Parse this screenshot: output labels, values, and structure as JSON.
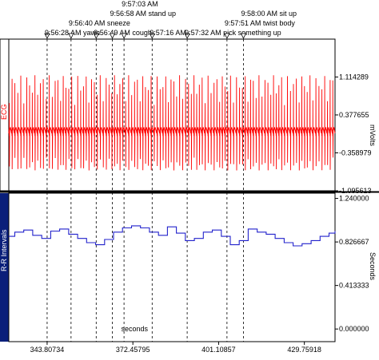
{
  "window": {
    "left_panel_color": "#0a1f7a",
    "ecg_color": "#ff0000",
    "rr_color": "#2222cc"
  },
  "events": [
    {
      "time": 343.80734,
      "label": "9:56:28 AM yawn"
    },
    {
      "time": 351.8,
      "label": "9:56:40 AM sneeze"
    },
    {
      "time": 360.2,
      "label": "9:56:49 AM cough"
    },
    {
      "time": 365.6,
      "label": "9:56:58 AM stand up"
    },
    {
      "time": 369.5,
      "label": "9:57:03 AM"
    },
    {
      "time": 378.9,
      "label": "9:57:16 AM"
    },
    {
      "time": 390.6,
      "label": "9:57:32 AM pick something up"
    },
    {
      "time": 403.9,
      "label": "9:57:51 AM twist body"
    },
    {
      "time": 409.4,
      "label": "9:58:00 AM sit up"
    }
  ],
  "chart_data": [
    {
      "type": "line",
      "channel": "ECG",
      "ylabel": "mVolts",
      "yticks": [
        "1.114289",
        "0.377655",
        "-0.358979",
        "-1.095613"
      ],
      "ylim": [
        -1.095613,
        1.85
      ],
      "xlim": [
        331.0,
        440.0
      ],
      "series": [
        {
          "name": "ECG"
        }
      ]
    },
    {
      "type": "line",
      "channel": "R-R Intervals",
      "ylabel": "Seconds",
      "xlabel": "seconds",
      "yticks": [
        "1.240000",
        "0.826667",
        "0.413333",
        "0.000000"
      ],
      "ylim": [
        -0.12,
        1.29
      ],
      "xlim": [
        331.0,
        440.0
      ],
      "xticks": [
        "343.80734",
        "372.45795",
        "401.10857",
        "429.75918"
      ],
      "series": [
        {
          "name": "R-R Intervals",
          "x": [
            331,
            333,
            336,
            339,
            342,
            345,
            348,
            351,
            354,
            357,
            360,
            363,
            366,
            369,
            372,
            375,
            378,
            381,
            384,
            387,
            390,
            393,
            396,
            399,
            402,
            405,
            408,
            411,
            414,
            417,
            420,
            423,
            426,
            429,
            432,
            435,
            438,
            440
          ],
          "y": [
            0.88,
            0.92,
            0.94,
            0.89,
            0.86,
            0.93,
            0.95,
            0.9,
            0.86,
            0.82,
            0.8,
            0.85,
            0.92,
            0.96,
            0.98,
            0.96,
            0.92,
            0.89,
            0.97,
            0.91,
            0.84,
            0.86,
            0.92,
            0.94,
            0.88,
            0.8,
            0.84,
            0.95,
            0.92,
            0.9,
            0.86,
            0.82,
            0.79,
            0.81,
            0.84,
            0.88,
            0.91,
            0.93
          ]
        }
      ]
    }
  ]
}
